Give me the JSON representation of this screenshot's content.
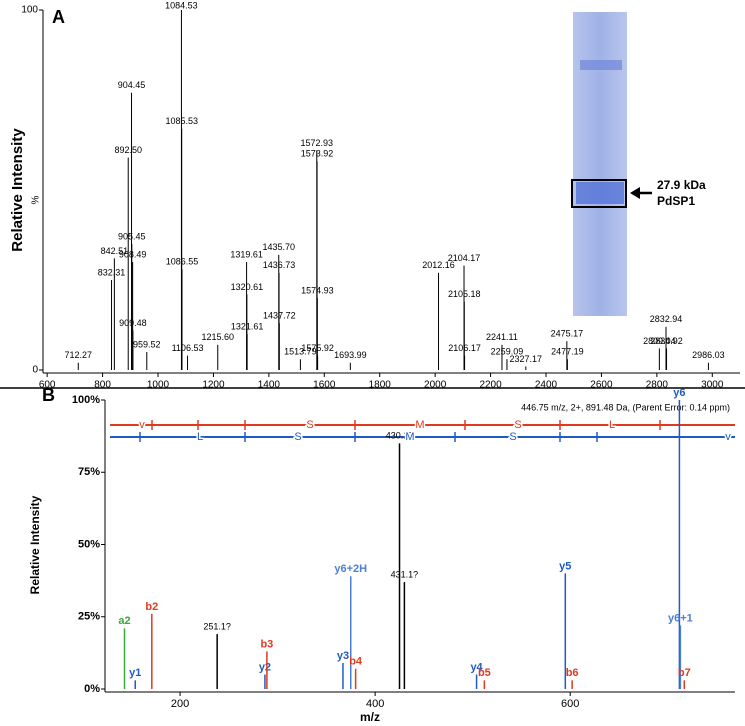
{
  "chart_data": [
    {
      "type": "spectrum",
      "panel_label": "A",
      "y_label": "Relative Intensity",
      "y_unit_label": "%",
      "color": "#000000",
      "x": [
        712.27,
        832.31,
        842.51,
        892.5,
        904.45,
        905.45,
        908.49,
        909.48,
        959.52,
        1084.53,
        1085.53,
        1086.55,
        1106.53,
        1215.6,
        1319.61,
        1320.61,
        1321.61,
        1435.7,
        1436.73,
        1437.72,
        1513.79,
        1572.93,
        1573.92,
        1574.93,
        1575.92,
        1693.99,
        2012.16,
        2104.17,
        2105.18,
        2106.17,
        2241.11,
        2259.09,
        2327.17,
        2475.17,
        2477.19,
        2809.04,
        2832.94,
        2834.92,
        2986.03
      ],
      "values": [
        2,
        25,
        31,
        59,
        77,
        35,
        30,
        11,
        5,
        100,
        67,
        28,
        4,
        7,
        30,
        21,
        10,
        32,
        27,
        13,
        3,
        61,
        58,
        20,
        4,
        2,
        27,
        29,
        19,
        4,
        7,
        3,
        1,
        8,
        3,
        6,
        12,
        6,
        2
      ],
      "labels": [
        "712.27",
        "832.31",
        "842.51",
        "892.50",
        "904.45",
        "905.45",
        "908.49",
        "909.48",
        "959.52",
        "1084.53",
        "1085.53",
        "1086.55",
        "1106.53",
        "1215.60",
        "1319.61",
        "1320.61",
        "1321.61",
        "1435.70",
        "1436.73",
        "1437.72",
        "1513.79",
        "1572.93",
        "1573.92",
        "1574.93",
        "1575.92",
        "1693.99",
        "2012.16",
        "2104.17",
        "2105.18",
        "2106.17",
        "2241.11",
        "2259.09",
        "2327.17",
        "2475.17",
        "2477.19",
        "2809.04",
        "2832.94",
        "2834.92",
        "2986.03"
      ],
      "xlim": [
        585,
        3100
      ],
      "xticks": [
        600,
        800,
        1000,
        1200,
        1400,
        1600,
        1800,
        2000,
        2200,
        2400,
        2600,
        2800,
        3000
      ],
      "ylim": [
        0,
        100
      ],
      "yticks": [
        0,
        100
      ],
      "annotations": [
        "27.9 kDa",
        "PdSP1"
      ]
    },
    {
      "type": "spectrum",
      "panel_label": "B",
      "y_label": "Relative Intensity",
      "x_label": "m/z",
      "header": "446.75 m/z, 2+, 891.48 Da,  (Parent Error: 0.14 ppm)",
      "sequence_top": [
        "v",
        "S",
        "M",
        "S",
        "L"
      ],
      "sequence_bottom": [
        "L",
        "S",
        "M",
        "S",
        "v"
      ],
      "x": [
        143,
        154,
        171,
        238,
        287,
        289,
        367,
        375,
        380,
        425,
        430,
        504,
        512,
        595,
        602,
        712,
        713,
        717
      ],
      "values": [
        21,
        3,
        26,
        19,
        5,
        13,
        9,
        39,
        7,
        85,
        37,
        5,
        3,
        40,
        3,
        100,
        22,
        3
      ],
      "labels": [
        "a2",
        "y1",
        "b2",
        "251.1?",
        "y2",
        "b3",
        "y3",
        "y6+2H",
        "b4",
        "430.1?",
        "431.1?",
        "y4",
        "b5",
        "y5",
        "b6",
        "y6",
        "y6+1",
        "b7"
      ],
      "colors": [
        "#3aa83a",
        "#1f5bc4",
        "#e03a1e",
        "#000000",
        "#1f5bc4",
        "#e03a1e",
        "#1f5bc4",
        "#4a7fd6",
        "#e03a1e",
        "#000000",
        "#000000",
        "#1f5bc4",
        "#e03a1e",
        "#1f5bc4",
        "#e03a1e",
        "#1f5bc4",
        "#4a7fd6",
        "#e03a1e"
      ],
      "xlim": [
        123,
        769
      ],
      "xticks": [
        200,
        400,
        600
      ],
      "ylim": [
        0,
        100
      ],
      "yticks": [
        {
          "value": 0,
          "label": "0%"
        },
        {
          "value": 25,
          "label": "25%"
        },
        {
          "value": 50,
          "label": "50%"
        },
        {
          "value": 75,
          "label": "75%"
        },
        {
          "value": 100,
          "label": "100%"
        }
      ]
    }
  ]
}
